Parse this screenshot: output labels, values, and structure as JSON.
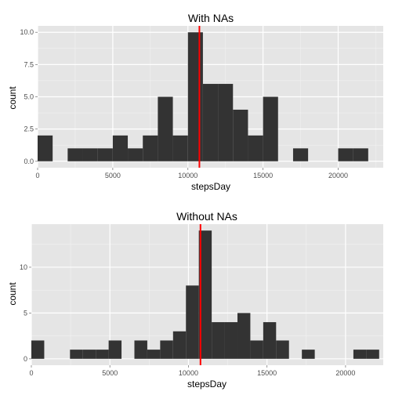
{
  "chart_data": [
    {
      "type": "bar",
      "title": "With NAs",
      "xlabel": "stepsDay",
      "ylabel": "count",
      "xlim": [
        0,
        23000
      ],
      "ylim": [
        -0.5,
        10.5
      ],
      "xticks": [
        0,
        5000,
        10000,
        15000,
        20000
      ],
      "xtick_labels": [
        "0",
        "5000",
        "10000",
        "15000",
        "20000"
      ],
      "yticks": [
        0,
        2.5,
        5,
        7.5,
        10
      ],
      "ytick_labels": [
        "0.0",
        "2.5",
        "5.0",
        "7.5",
        "10.0"
      ],
      "bins": [
        {
          "x0": 0,
          "x1": 1000,
          "count": 2
        },
        {
          "x0": 2000,
          "x1": 3000,
          "count": 1
        },
        {
          "x0": 3000,
          "x1": 4000,
          "count": 1
        },
        {
          "x0": 4000,
          "x1": 5000,
          "count": 1
        },
        {
          "x0": 5000,
          "x1": 6000,
          "count": 2
        },
        {
          "x0": 6000,
          "x1": 7000,
          "count": 1
        },
        {
          "x0": 7000,
          "x1": 8000,
          "count": 2
        },
        {
          "x0": 8000,
          "x1": 9000,
          "count": 5
        },
        {
          "x0": 9000,
          "x1": 10000,
          "count": 2
        },
        {
          "x0": 10000,
          "x1": 11000,
          "count": 10
        },
        {
          "x0": 11000,
          "x1": 12000,
          "count": 6
        },
        {
          "x0": 12000,
          "x1": 13000,
          "count": 6
        },
        {
          "x0": 13000,
          "x1": 14000,
          "count": 4
        },
        {
          "x0": 14000,
          "x1": 15000,
          "count": 2
        },
        {
          "x0": 15000,
          "x1": 16000,
          "count": 5
        },
        {
          "x0": 17000,
          "x1": 18000,
          "count": 1
        },
        {
          "x0": 20000,
          "x1": 21000,
          "count": 1
        },
        {
          "x0": 21000,
          "x1": 22000,
          "count": 1
        }
      ],
      "vline": {
        "x": 10766,
        "color": "#ff0000"
      },
      "bar_color": "#333333",
      "panel_color": "#e5e5e5",
      "grid": true
    },
    {
      "type": "bar",
      "title": "Without NAs",
      "xlabel": "stepsDay",
      "ylabel": "count",
      "xlim": [
        0,
        22400
      ],
      "ylim": [
        -0.7,
        14.7
      ],
      "xticks": [
        0,
        5000,
        10000,
        15000,
        20000
      ],
      "xtick_labels": [
        "0",
        "5000",
        "10000",
        "15000",
        "20000"
      ],
      "yticks": [
        0,
        5,
        10
      ],
      "ytick_labels": [
        "0",
        "5",
        "10"
      ],
      "bins": [
        {
          "x0": 0,
          "x1": 820,
          "count": 2
        },
        {
          "x0": 2460,
          "x1": 3280,
          "count": 1
        },
        {
          "x0": 3280,
          "x1": 4100,
          "count": 1
        },
        {
          "x0": 4100,
          "x1": 4920,
          "count": 1
        },
        {
          "x0": 4920,
          "x1": 5740,
          "count": 2
        },
        {
          "x0": 6560,
          "x1": 7380,
          "count": 2
        },
        {
          "x0": 7380,
          "x1": 8200,
          "count": 1
        },
        {
          "x0": 8200,
          "x1": 9020,
          "count": 2
        },
        {
          "x0": 9020,
          "x1": 9840,
          "count": 3
        },
        {
          "x0": 9840,
          "x1": 10660,
          "count": 8
        },
        {
          "x0": 10660,
          "x1": 11480,
          "count": 14
        },
        {
          "x0": 11480,
          "x1": 12300,
          "count": 4
        },
        {
          "x0": 12300,
          "x1": 13120,
          "count": 4
        },
        {
          "x0": 13120,
          "x1": 13940,
          "count": 5
        },
        {
          "x0": 13940,
          "x1": 14760,
          "count": 2
        },
        {
          "x0": 14760,
          "x1": 15580,
          "count": 4
        },
        {
          "x0": 15580,
          "x1": 16400,
          "count": 2
        },
        {
          "x0": 17220,
          "x1": 18040,
          "count": 1
        },
        {
          "x0": 20500,
          "x1": 21320,
          "count": 1
        },
        {
          "x0": 21320,
          "x1": 22140,
          "count": 1
        }
      ],
      "vline": {
        "x": 10766,
        "color": "#ff0000"
      },
      "bar_color": "#333333",
      "panel_color": "#e5e5e5",
      "grid": true
    }
  ]
}
